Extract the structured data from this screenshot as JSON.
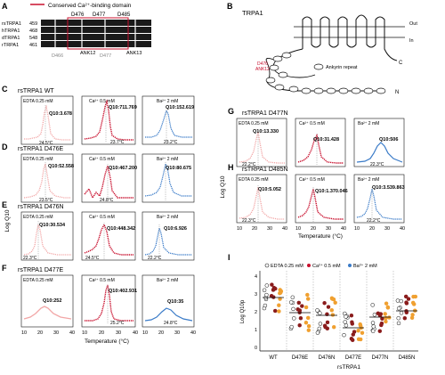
{
  "colors": {
    "edta": "#f2a6a6",
    "ca": "#c8102e",
    "ba": "#3a7bc8",
    "black": "#111111",
    "gray": "#888888",
    "legend_orange": "#f0a030",
    "legend_dark": "#8a1c1c",
    "legend_teal": "#2a8a8a"
  },
  "panel_a": {
    "letter": "A",
    "legend": "Conserved Ca²⁺-binding domain",
    "top_labels": [
      "D476",
      "D477",
      "D485"
    ],
    "bottom_labels": [
      "D466",
      "ANK12",
      "D477",
      "ANK13"
    ],
    "rows": [
      {
        "species": "rsTRPA1",
        "start": "459"
      },
      {
        "species": "hTRPA1",
        "start": "468"
      },
      {
        "species": "dTRPA1",
        "start": "548"
      },
      {
        "species": "rTRPA1",
        "start": "461"
      }
    ]
  },
  "panel_b": {
    "letter": "B",
    "title": "TRPA1",
    "out": "Out",
    "in": "In",
    "c": "C",
    "n": "N",
    "domain_label1": "D476",
    "domain_label2": "ANK12",
    "legend": "Ankyrin repeat"
  },
  "panels": [
    {
      "letter": "C",
      "title": "rsTRPA1 WT",
      "cond": [
        "EDTA 0.25 mM",
        "Ca²⁺ 0.5 mM",
        "Ba²⁺ 2 mM"
      ],
      "q": [
        "Q10:3.678",
        "Q10:711.769",
        "Q10:152.619"
      ],
      "t": [
        "24.5°C",
        "23.7°C",
        "23.2°C"
      ]
    },
    {
      "letter": "D",
      "title": "rsTRPA1 D476E",
      "cond": [
        "EDTA 0.25 mM",
        "Ca²⁺ 0.5 mM",
        "Ba²⁺ 2 mM"
      ],
      "q": [
        "Q10:52.558",
        "Q10:467.200",
        "Q10:80.675"
      ],
      "t": [
        "23.5°C",
        "24.8°C",
        ""
      ]
    },
    {
      "letter": "E",
      "title": "rsTRPA1 D476N",
      "cond": [
        "EDTA 0.25 mM",
        "Ca²⁺ 0.5 mM",
        "Ba²⁺ 2 mM"
      ],
      "q": [
        "Q10:30.534",
        "Q10:448.342",
        "Q10:6.926"
      ],
      "t": [
        "22.3°C",
        "24.5°C",
        "22.2°C"
      ]
    },
    {
      "letter": "F",
      "title": "rsTRPA1 D477E",
      "cond": [
        "EDTA 0.25 mM",
        "Ca²⁺ 0.5 mM",
        "Ba²⁺ 2 mM"
      ],
      "q": [
        "Q10:252",
        "Q10:402.931",
        "Q10:35"
      ],
      "t": [
        "",
        "25.2°C",
        "24.8°C"
      ]
    },
    {
      "letter": "G",
      "title": "rsTRPA1 D477N",
      "cond": [
        "EDTA 0.25 mM",
        "Ca²⁺ 0.5 mM",
        "Ba²⁺ 2 mM"
      ],
      "q": [
        "Q10:13.330",
        "Q10:31.428",
        "Q10:506"
      ],
      "t": [
        "22.2°C",
        "",
        "22.3°C"
      ]
    },
    {
      "letter": "H",
      "title": "rsTRPA1 D485N",
      "cond": [
        "EDTA 0.25 mM",
        "Ca²⁺ 0.5 mM",
        "Ba²⁺ 2 mM"
      ],
      "q": [
        "Q10:5.052",
        "Q10:1.370.046",
        "Q10:3.539.863"
      ],
      "t": [
        "22.3°C",
        "",
        "22.2°C"
      ]
    }
  ],
  "axis": {
    "ylabel": "Log Q10",
    "xlabel": "Temperature (°C)",
    "ticks": [
      "10",
      "20",
      "30",
      "40"
    ]
  },
  "panel_i": {
    "letter": "I",
    "legend": [
      "EDTA 0.25 mM",
      "Ca²⁺ 0.5 mM",
      "Ba²⁺ 2 mM"
    ],
    "ylabel": "Log Q10p",
    "xlabel": "rsTRPA1",
    "yticks": [
      "4",
      "3",
      "2",
      "1",
      "0"
    ],
    "groups": [
      "WT",
      "D476E",
      "D476N",
      "D477E",
      "D477N",
      "D485N"
    ]
  }
}
